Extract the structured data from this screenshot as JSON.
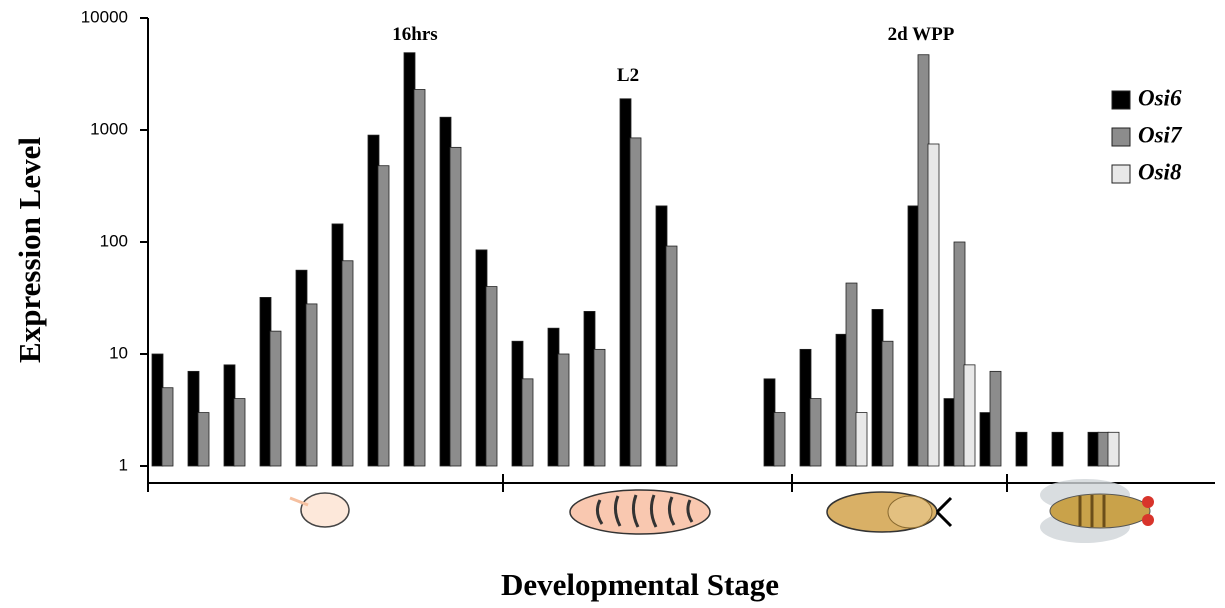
{
  "chart_data": {
    "type": "bar",
    "y_label": "Expression Level",
    "x_label": "Developmental Stage",
    "annotations": [
      "16hrs",
      "L2",
      "2d WPP"
    ],
    "log_scale": true,
    "legend": "upper right",
    "categories": [
      null,
      null,
      null,
      null,
      null,
      null,
      null,
      null,
      null,
      null,
      null,
      null,
      null,
      null,
      null,
      null,
      null,
      null,
      null,
      null,
      null,
      null,
      null,
      null,
      null,
      null,
      null,
      null,
      null
    ],
    "series": [
      {
        "name": "Osi6",
        "color": "#000000",
        "values": [
          10,
          7,
          8,
          32,
          56,
          145,
          900,
          4900,
          1300,
          85,
          13,
          17,
          24,
          1900,
          210,
          null,
          null,
          6,
          11,
          15,
          25,
          210,
          4,
          3,
          2,
          2,
          2,
          null,
          null
        ]
      },
      {
        "name": "Osi7",
        "color": "#8c8c8c",
        "values": [
          5,
          3,
          4,
          16,
          28,
          68,
          480,
          2300,
          700,
          40,
          6,
          10,
          11,
          850,
          92,
          null,
          null,
          3,
          4,
          43,
          13,
          4700,
          100,
          7,
          null,
          null,
          2,
          null,
          null
        ]
      },
      {
        "name": "Osi8",
        "color": "#e8e8e8",
        "values": [
          null,
          null,
          null,
          null,
          null,
          null,
          null,
          null,
          null,
          null,
          null,
          null,
          null,
          null,
          null,
          null,
          null,
          null,
          null,
          3,
          null,
          750,
          8,
          null,
          null,
          null,
          2,
          null,
          null
        ]
      }
    ],
    "ylim": [
      1,
      10000
    ],
    "yticks": [
      1,
      10,
      100,
      1000,
      10000
    ]
  }
}
